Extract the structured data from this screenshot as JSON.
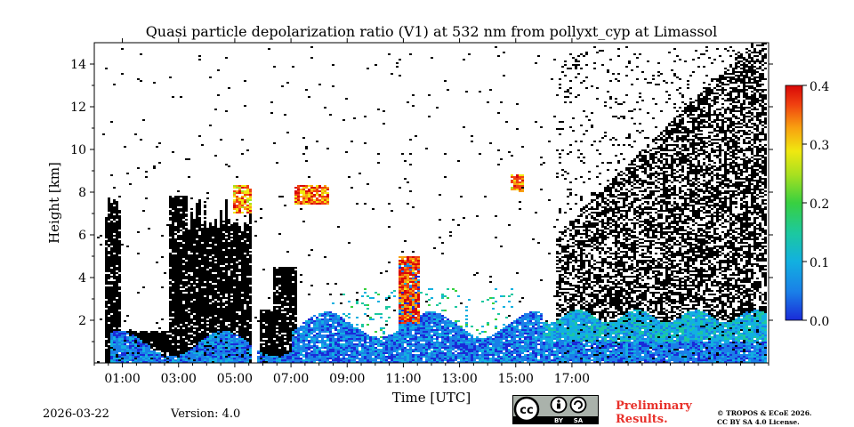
{
  "chart_data": {
    "type": "heatmap",
    "title": "Quasi particle depolarization ratio (V1) at 532 nm from pollyxt_cyp at Limassol",
    "xlabel": "Time [UTC]",
    "ylabel": "Height [km]",
    "xlim_hours": [
      0,
      24
    ],
    "ylim_km": [
      0,
      15
    ],
    "x_ticks": [
      {
        "hour": 1,
        "label": "01:00"
      },
      {
        "hour": 3,
        "label": "03:00"
      },
      {
        "hour": 5,
        "label": "05:00"
      },
      {
        "hour": 7,
        "label": "07:00"
      },
      {
        "hour": 9,
        "label": "09:00"
      },
      {
        "hour": 11,
        "label": "11:00"
      },
      {
        "hour": 13,
        "label": "13:00"
      },
      {
        "hour": 15,
        "label": "15:00"
      },
      {
        "hour": 17,
        "label": "17:00"
      }
    ],
    "y_ticks": [
      {
        "km": 2,
        "label": "2"
      },
      {
        "km": 4,
        "label": "4"
      },
      {
        "km": 6,
        "label": "6"
      },
      {
        "km": 8,
        "label": "8"
      },
      {
        "km": 10,
        "label": "10"
      },
      {
        "km": 12,
        "label": "12"
      },
      {
        "km": 14,
        "label": "14"
      }
    ],
    "colorbar": {
      "range": [
        0.0,
        0.4
      ],
      "ticks": [
        {
          "value": 0.0,
          "label": "0.0"
        },
        {
          "value": 0.1,
          "label": "0.1"
        },
        {
          "value": 0.2,
          "label": "0.2"
        },
        {
          "value": 0.3,
          "label": "0.3"
        },
        {
          "value": 0.4,
          "label": "0.4"
        }
      ],
      "colormap": [
        "#1a2ad8",
        "#1a7fe8",
        "#12b0e0",
        "#1cc8a0",
        "#38d040",
        "#a8e020",
        "#f0e810",
        "#f8a010",
        "#f04010",
        "#d80808"
      ]
    },
    "features": [
      {
        "kind": "cloud",
        "start_hour": 5.0,
        "end_hour": 5.6,
        "bottom_km": 7.0,
        "top_km": 8.3,
        "value": 0.3
      },
      {
        "kind": "cloud",
        "start_hour": 7.1,
        "end_hour": 8.4,
        "bottom_km": 7.4,
        "top_km": 8.3,
        "value": 0.32
      },
      {
        "kind": "cloud",
        "start_hour": 10.9,
        "end_hour": 11.6,
        "bottom_km": 1.8,
        "top_km": 5.0,
        "value": 0.35
      },
      {
        "kind": "cloud",
        "start_hour": 14.9,
        "end_hour": 15.3,
        "bottom_km": 8.0,
        "top_km": 8.8,
        "value": 0.3
      },
      {
        "kind": "boundary_layer",
        "start_hour": 0.6,
        "end_hour": 24,
        "bottom_km": 0,
        "top_km": 2.0,
        "value": 0.05
      },
      {
        "kind": "dust_layer",
        "start_hour": 8.5,
        "end_hour": 15.0,
        "bottom_km": 1.8,
        "top_km": 3.5,
        "value": 0.12
      }
    ]
  },
  "footer": {
    "date": "2026-03-22",
    "version": "Version: 4.0",
    "preliminary_line1": "Preliminary",
    "preliminary_line2": "Results.",
    "license_line1": "© TROPOS & ECoE 2026.",
    "license_line2": "CC BY SA 4.0 License.",
    "badge_cc": "cc",
    "badge_by": "BY",
    "badge_sa": "SA"
  }
}
